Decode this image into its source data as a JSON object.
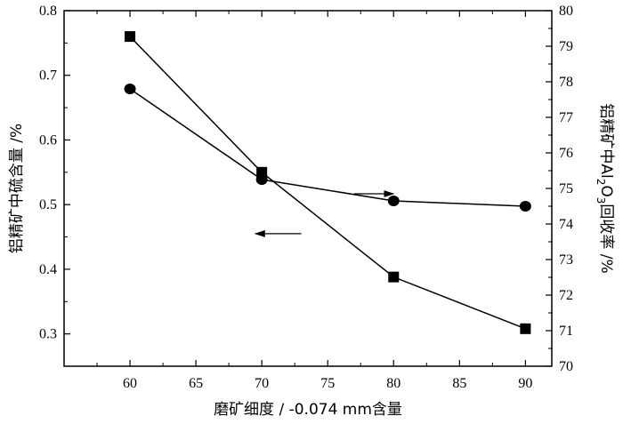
{
  "chart_data": {
    "type": "line",
    "xlabel": "磨矿细度 / -0.074 mm含量",
    "ylabel_left": "铝精矿中硫含量 /%",
    "ylabel_right_parts": [
      "铝精矿中Al",
      "2",
      "O",
      "3",
      "回收率 /%"
    ],
    "x_range": [
      55,
      92
    ],
    "x_ticks": [
      60,
      65,
      70,
      75,
      80,
      85,
      90
    ],
    "left_ylim": [
      0.25,
      0.8
    ],
    "left_ticks": [
      0.3,
      0.4,
      0.5,
      0.6,
      0.7,
      0.8
    ],
    "right_ylim": [
      70,
      80
    ],
    "right_ticks": [
      70,
      71,
      72,
      73,
      74,
      75,
      76,
      77,
      78,
      79,
      80
    ],
    "series": [
      {
        "marker": "square",
        "axis": "left",
        "x": [
          60,
          70,
          80,
          90
        ],
        "y": [
          0.76,
          0.55,
          0.388,
          0.308
        ]
      },
      {
        "marker": "circle",
        "axis": "right",
        "x": [
          60,
          70,
          80,
          90
        ],
        "y": [
          77.8,
          75.25,
          74.65,
          74.5
        ]
      }
    ],
    "annotations": [
      {
        "type": "arrow",
        "direction": "right",
        "points_to": "right-axis",
        "x_from": 77,
        "x_to": 80,
        "y_right": 74.85
      },
      {
        "type": "arrow",
        "direction": "left",
        "points_to": "left-axis",
        "x_from": 73,
        "x_to": 69.5,
        "y_left": 0.455
      }
    ],
    "grid": false,
    "legend": "none"
  }
}
